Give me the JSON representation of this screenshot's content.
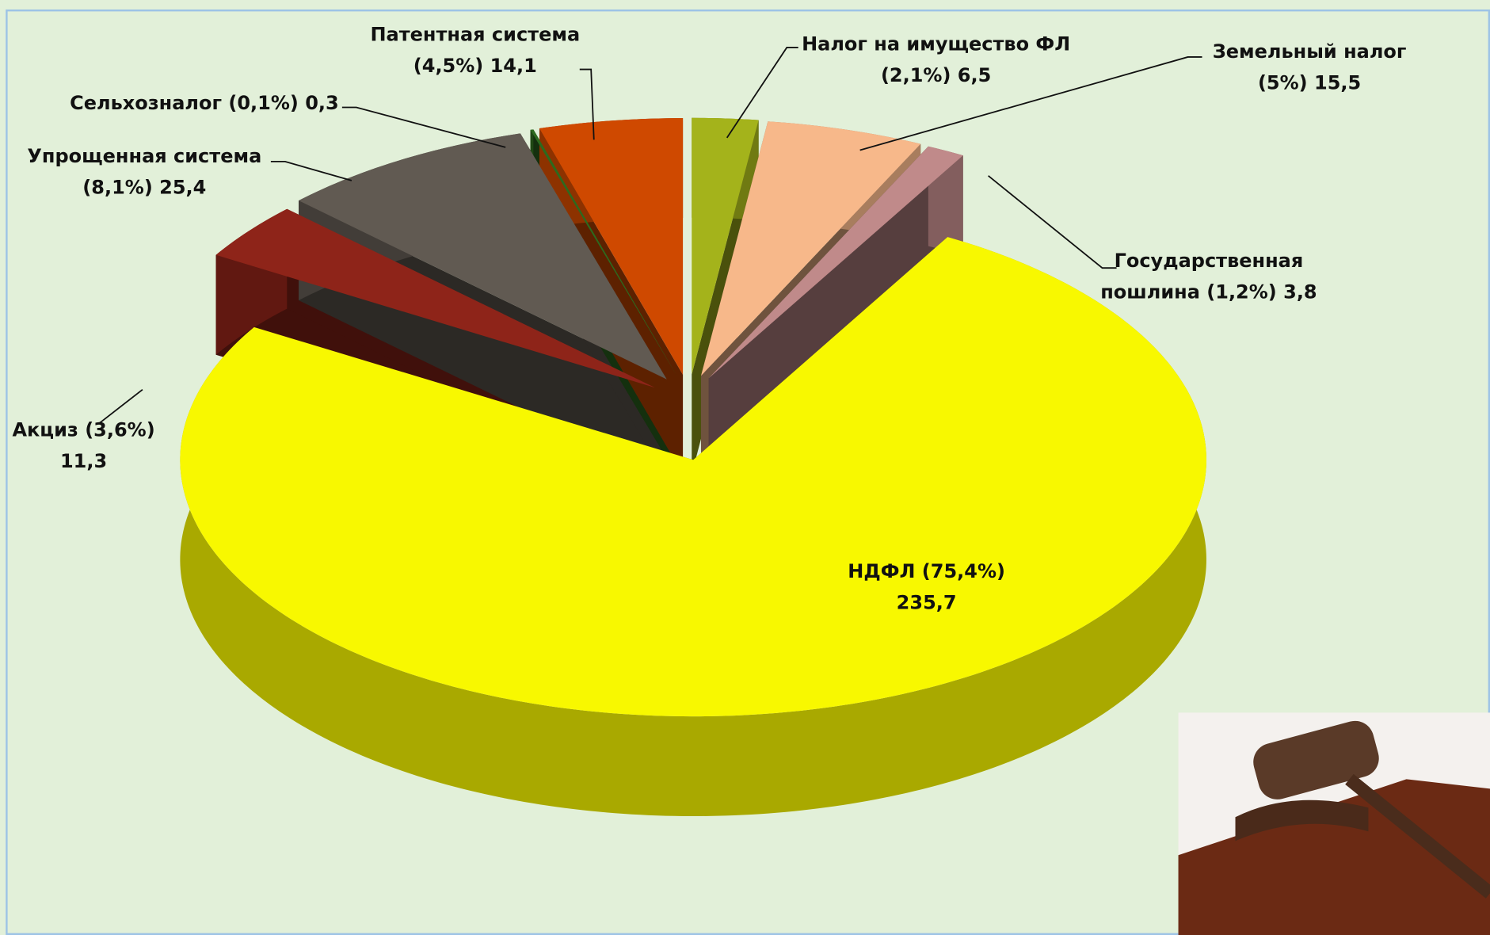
{
  "chart_data": {
    "type": "pie3d",
    "categories": [
      "Налог на имущество ФЛ",
      "Земельный налог",
      "Государственная пошлина",
      "НДФЛ",
      "Акциз",
      "Упрощенная система",
      "Сельхозналог",
      "Патентная система"
    ],
    "values": [
      6.5,
      15.5,
      3.8,
      235.7,
      11.3,
      25.4,
      0.3,
      14.1
    ],
    "value_labels": [
      "6,5",
      "15,5",
      "3,8",
      "235,7",
      "11,3",
      "25,4",
      "0,3",
      "14,1"
    ],
    "percents": [
      2.1,
      5,
      1.2,
      75.4,
      3.6,
      8.1,
      0.1,
      4.5
    ],
    "percent_labels": [
      "(2,1%)",
      "(5%)",
      "(1,2%)",
      "(75,4%)",
      "(3,6%)",
      "(8,1%)",
      "(0,1%)",
      "(4,5%)"
    ],
    "colors": [
      "#a4b31b",
      "#f7b88a",
      "#c08a8a",
      "#f8f800",
      "#8e2419",
      "#615a52",
      "#2d6a1e",
      "#cf4900"
    ]
  }
}
